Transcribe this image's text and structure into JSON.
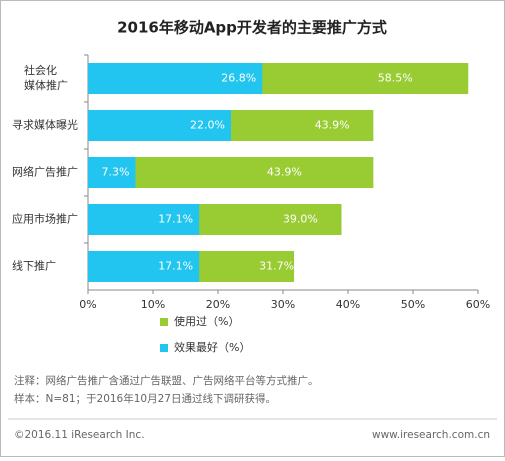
{
  "chart_data": {
    "type": "bar",
    "orientation": "horizontal",
    "overlay": true,
    "title": "2016年移动App开发者的主要推广方式",
    "categories": [
      [
        "社会化",
        "媒体推广"
      ],
      [
        "寻求媒体曝光"
      ],
      [
        "网络广告推广"
      ],
      [
        "应用市场推广"
      ],
      [
        "线下推广"
      ]
    ],
    "series": [
      {
        "name": "使用过（%）",
        "color": "#99cc33",
        "values": [
          58.5,
          43.9,
          43.9,
          39.0,
          31.7
        ],
        "value_labels": [
          "58.5%",
          "43.9%",
          "43.9%",
          "39.0%",
          "31.7%"
        ]
      },
      {
        "name": "效果最好（%）",
        "color": "#22c5f0",
        "values": [
          26.8,
          22.0,
          7.3,
          17.1,
          17.1
        ],
        "value_labels": [
          "26.8%",
          "22.0%",
          "7.3%",
          "17.1%",
          "17.1%"
        ]
      }
    ],
    "xlim": [
      0,
      60
    ],
    "xticks": [
      {
        "value": 0,
        "label": "0%"
      },
      {
        "value": 10,
        "label": "10%"
      },
      {
        "value": 20,
        "label": "20%"
      },
      {
        "value": 30,
        "label": "30%"
      },
      {
        "value": 40,
        "label": "40%"
      },
      {
        "value": 50,
        "label": "50%"
      },
      {
        "value": 60,
        "label": "60%"
      }
    ],
    "notes": [
      "注释：网络广告推广含通过广告联盟、广告网络平台等方式推广。",
      "样本：N=81；于2016年10月27日通过线下调研获得。"
    ],
    "footer_left": "©2016.11 iResearch Inc.",
    "footer_right": "www.iresearch.com.cn"
  }
}
